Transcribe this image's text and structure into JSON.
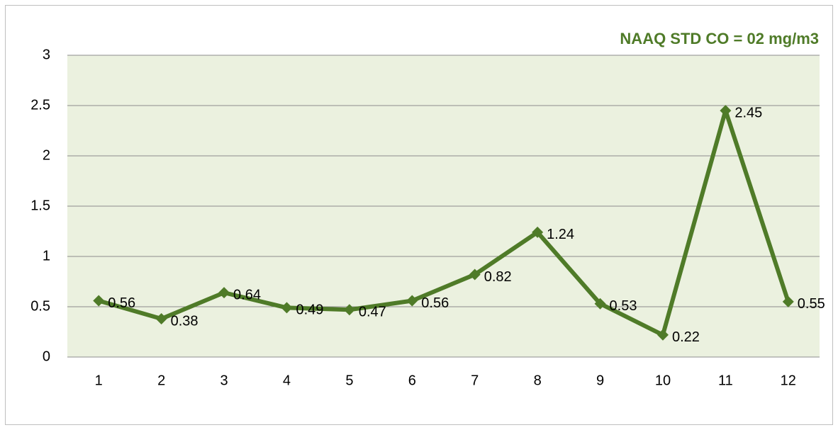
{
  "chart_data": {
    "type": "line",
    "title": "NAAQ STD CO = 02 mg/m3",
    "categories": [
      "1",
      "2",
      "3",
      "4",
      "5",
      "6",
      "7",
      "8",
      "9",
      "10",
      "11",
      "12"
    ],
    "values": [
      0.56,
      0.38,
      0.64,
      0.49,
      0.47,
      0.56,
      0.82,
      1.24,
      0.53,
      0.22,
      2.45,
      0.55
    ],
    "color": "#4f7b28",
    "ylim": [
      0,
      3
    ],
    "yticks": [
      0,
      0.5,
      1,
      1.5,
      2,
      2.5,
      3
    ],
    "grid": true
  }
}
